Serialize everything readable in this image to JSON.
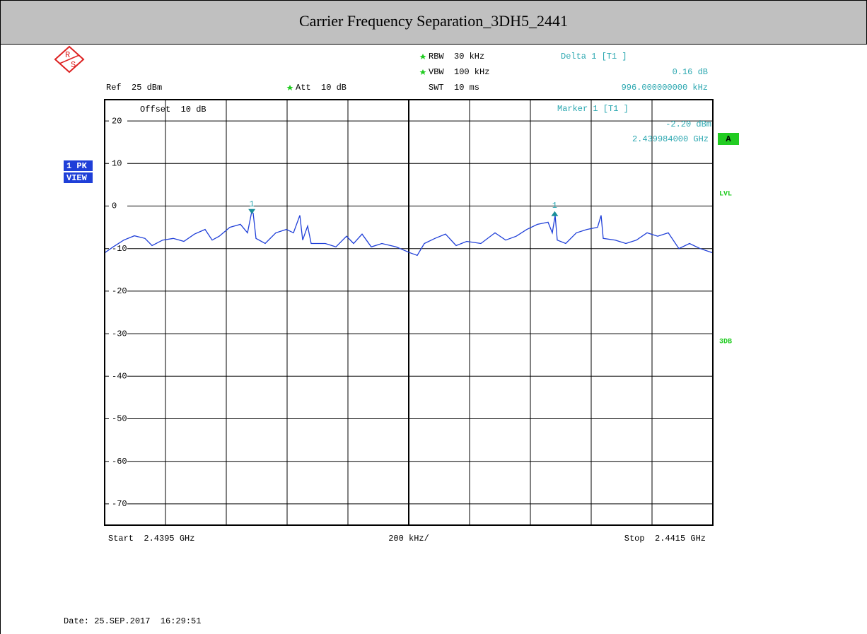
{
  "title": "Carrier Frequency Separation_3DH5_2441",
  "settings": {
    "ref": "Ref  25 dBm",
    "att": "Att  10 dB",
    "offset": "Offset  10 dB",
    "rbw": "RBW  30 kHz",
    "vbw": "VBW  100 kHz",
    "swt": "SWT  10 ms",
    "delta_title": "Delta 1 [T1 ]",
    "delta_value": "0.16 dB",
    "delta_freq": "996.000000000 kHz",
    "marker_title": "Marker 1 [T1 ]",
    "marker_value": "-2.20 dBm",
    "marker_freq": "2.439984000 GHz",
    "start": "Start  2.4395 GHz",
    "span": "200 kHz/",
    "stop": "Stop  2.4415 GHz",
    "trace_mode": "1 PK",
    "trace_view": "VIEW",
    "trace_label": "A",
    "lvl": "LVL",
    "db3": "3DB",
    "date": "Date: 25.SEP.2017  16:29:51"
  },
  "chart_data": {
    "type": "line",
    "grid": true,
    "xlim": [
      2.4395,
      2.4415
    ],
    "xticks": [
      2.4395,
      2.4397,
      2.4399,
      2.4401,
      2.4403,
      2.4405,
      2.4407,
      2.4409,
      2.4411,
      2.4413,
      2.4415
    ],
    "ylim": [
      -75,
      25
    ],
    "yticks": [
      20,
      10,
      0,
      -10,
      -20,
      -30,
      -40,
      -50,
      -60,
      -70
    ],
    "x": [
      2.4395,
      2.4395279,
      2.4395628,
      2.4395977,
      2.4396326,
      2.4396558,
      2.4396907,
      2.4397256,
      2.4397605,
      2.4397953,
      2.4398302,
      2.4398535,
      2.4398767,
      2.4399116,
      2.4399465,
      2.4399698,
      2.4399837,
      2.4399884,
      2.4399977,
      2.4400279,
      2.4400628,
      2.4400977,
      2.4401209,
      2.4401419,
      2.4401512,
      2.4401674,
      2.4401791,
      2.4402256,
      2.4402605,
      2.4402954,
      2.4403186,
      2.4403465,
      2.4403767,
      2.4404116,
      2.4404581,
      2.4405047,
      2.4405279,
      2.4405512,
      2.440586,
      2.4406209,
      2.4406558,
      2.4406907,
      2.4407372,
      2.4407837,
      2.4408186,
      2.4408535,
      2.4408884,
      2.4409233,
      2.4409581,
      2.4409721,
      2.4409814,
      2.4409884,
      2.4410163,
      2.4410512,
      2.4410861,
      2.441121,
      2.4411326,
      2.4411395,
      2.4411791,
      2.441214,
      2.4412489,
      2.4412837,
      2.4413186,
      2.4413535,
      2.4413884,
      2.4414233,
      2.4414582,
      2.4415
    ],
    "series": [
      {
        "color": "#1f3fd8",
        "values": [
          -11,
          -9.6,
          -8,
          -7,
          -7.6,
          -9.3,
          -8,
          -7.6,
          -8.3,
          -6.6,
          -5.5,
          -8,
          -7.1,
          -5,
          -4.3,
          -6.3,
          -1.3,
          -1.7,
          -7.6,
          -8.8,
          -6.3,
          -5.5,
          -6.3,
          -2.2,
          -8,
          -4.7,
          -8.8,
          -8.8,
          -9.6,
          -7.1,
          -8.8,
          -6.6,
          -9.6,
          -8.8,
          -9.6,
          -11,
          -11.6,
          -8.8,
          -7.6,
          -6.6,
          -9.3,
          -8.3,
          -8.8,
          -6.3,
          -8,
          -7.1,
          -5.5,
          -4.3,
          -3.8,
          -6.3,
          -2.2,
          -8,
          -8.8,
          -6.3,
          -5.5,
          -5,
          -2.2,
          -7.6,
          -8,
          -8.8,
          -8,
          -6.3,
          -7.1,
          -6.3,
          -10,
          -8.8,
          -10,
          -11
        ]
      }
    ],
    "markers": [
      {
        "label": "1",
        "x": 2.439984,
        "y": -2.2,
        "color": "#1a8f9a",
        "shape": "down"
      },
      {
        "label": "1",
        "x": 2.44098,
        "y": -2.04,
        "color": "#1a8f9a",
        "shape": "up"
      }
    ]
  }
}
